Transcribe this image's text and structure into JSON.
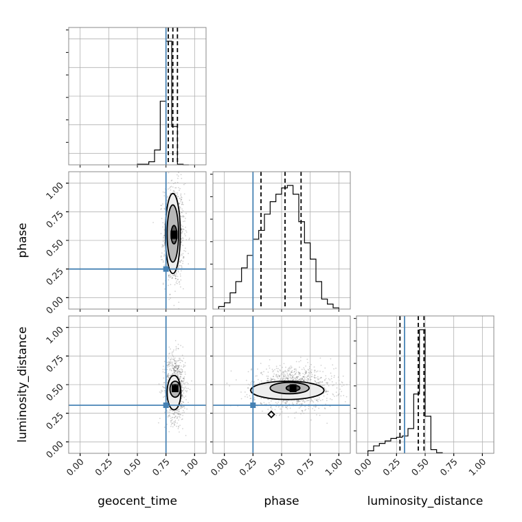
{
  "chart_data": {
    "type": "corner",
    "parameters": [
      "geocent_time",
      "phase",
      "luminosity_distance"
    ],
    "axis_range": [
      -0.1,
      1.1
    ],
    "ticks": [
      0.0,
      0.25,
      0.5,
      0.75,
      1.0
    ],
    "tick_labels": [
      "0.00",
      "0.25",
      "0.50",
      "0.75",
      "1.00"
    ],
    "grid": true,
    "truth_color": "#4682b4",
    "truths": {
      "geocent_time": 0.75,
      "phase": 0.25,
      "luminosity_distance": 0.32
    },
    "histograms": [
      {
        "parameter": "geocent_time",
        "bin_edges": [
          0.5,
          0.55,
          0.6,
          0.65,
          0.7,
          0.75,
          0.8,
          0.85,
          0.9,
          0.95
        ],
        "counts": [
          0.005,
          0.005,
          0.025,
          0.12,
          0.515,
          1.0,
          0.31,
          0.005,
          0.0
        ],
        "quantiles": [
          0.77,
          0.81,
          0.85
        ]
      },
      {
        "parameter": "phase",
        "bin_edges": [
          -0.05,
          0.0,
          0.05,
          0.1,
          0.15,
          0.2,
          0.25,
          0.3,
          0.35,
          0.4,
          0.45,
          0.5,
          0.55,
          0.6,
          0.65,
          0.7,
          0.75,
          0.8,
          0.85,
          0.9,
          0.95,
          1.0
        ],
        "counts": [
          0.02,
          0.05,
          0.13,
          0.22,
          0.33,
          0.43,
          0.56,
          0.63,
          0.76,
          0.86,
          0.92,
          0.97,
          0.99,
          0.92,
          0.7,
          0.53,
          0.4,
          0.22,
          0.08,
          0.04,
          0.01
        ],
        "quantiles": [
          0.32,
          0.53,
          0.67
        ]
      },
      {
        "parameter": "luminosity_distance",
        "bin_edges": [
          0.0,
          0.05,
          0.1,
          0.15,
          0.2,
          0.25,
          0.3,
          0.35,
          0.4,
          0.45,
          0.5,
          0.55,
          0.6,
          0.65
        ],
        "counts": [
          0.02,
          0.06,
          0.08,
          0.1,
          0.12,
          0.13,
          0.14,
          0.2,
          0.48,
          1.0,
          0.3,
          0.03,
          0.005
        ],
        "quantiles": [
          0.28,
          0.44,
          0.49
        ]
      }
    ],
    "joint_panels": [
      {
        "x": "geocent_time",
        "y": "phase",
        "peak": [
          0.82,
          0.55
        ],
        "spread": [
          0.05,
          0.25
        ],
        "scatter_count": 900,
        "contours": [
          {
            "cx": 0.82,
            "cy": 0.55,
            "rx": 0.025,
            "ry": 0.08
          },
          {
            "cx": 0.81,
            "cy": 0.56,
            "rx": 0.05,
            "ry": 0.25
          },
          {
            "cx": 0.81,
            "cy": 0.56,
            "rx": 0.065,
            "ry": 0.35
          }
        ]
      },
      {
        "x": "geocent_time",
        "y": "luminosity_distance",
        "peak": [
          0.83,
          0.47
        ],
        "spread": [
          0.05,
          0.16
        ],
        "scatter_count": 900,
        "contours": [
          {
            "cx": 0.83,
            "cy": 0.47,
            "rx": 0.02,
            "ry": 0.025
          },
          {
            "cx": 0.83,
            "cy": 0.46,
            "rx": 0.045,
            "ry": 0.07
          },
          {
            "cx": 0.82,
            "cy": 0.43,
            "rx": 0.06,
            "ry": 0.15
          }
        ]
      },
      {
        "x": "phase",
        "y": "luminosity_distance",
        "peak": [
          0.6,
          0.47
        ],
        "spread": [
          0.2,
          0.1
        ],
        "scatter_count": 1200,
        "contours": [
          {
            "cx": 0.6,
            "cy": 0.47,
            "rx": 0.06,
            "ry": 0.025
          },
          {
            "cx": 0.57,
            "cy": 0.47,
            "rx": 0.17,
            "ry": 0.05
          },
          {
            "cx": 0.55,
            "cy": 0.45,
            "rx": 0.32,
            "ry": 0.08
          }
        ],
        "islands": [
          {
            "cx": 0.41,
            "cy": 0.24,
            "rx": 0.015,
            "ry": 0.015
          }
        ]
      }
    ]
  }
}
